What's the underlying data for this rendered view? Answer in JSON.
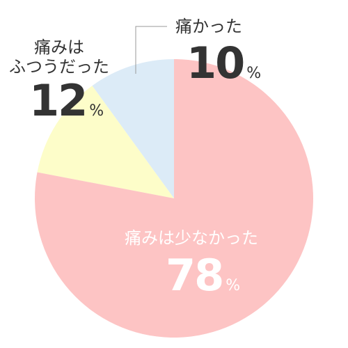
{
  "chart_data": {
    "type": "pie",
    "categories": [
      "痛みは少なかった",
      "痛みは\nふつうだった",
      "痛かった"
    ],
    "values": [
      78,
      12,
      10
    ],
    "unit": "%",
    "colors": [
      "#fdc4c4",
      "#fdfdc9",
      "#dcebf7"
    ]
  }
}
